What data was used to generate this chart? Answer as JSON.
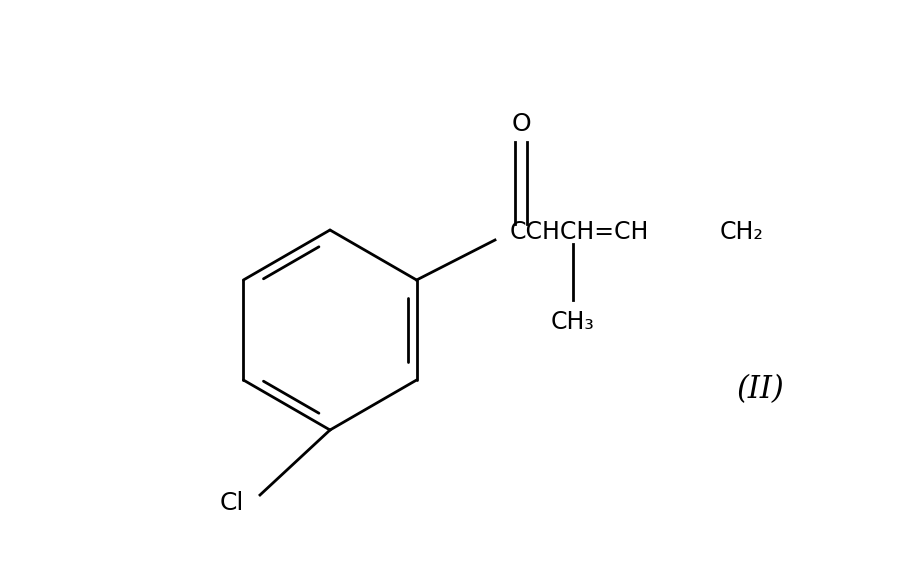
{
  "background_color": "#ffffff",
  "figure_width": 9.07,
  "figure_height": 5.75,
  "dpi": 100,
  "bond_color": "#000000",
  "text_color": "#000000",
  "label_II": "(II)",
  "label_Cl": "Cl",
  "label_O": "O",
  "label_CH2": "CH₂",
  "label_CH3": "CH₃",
  "font_size_atoms": 16,
  "font_size_II": 22
}
